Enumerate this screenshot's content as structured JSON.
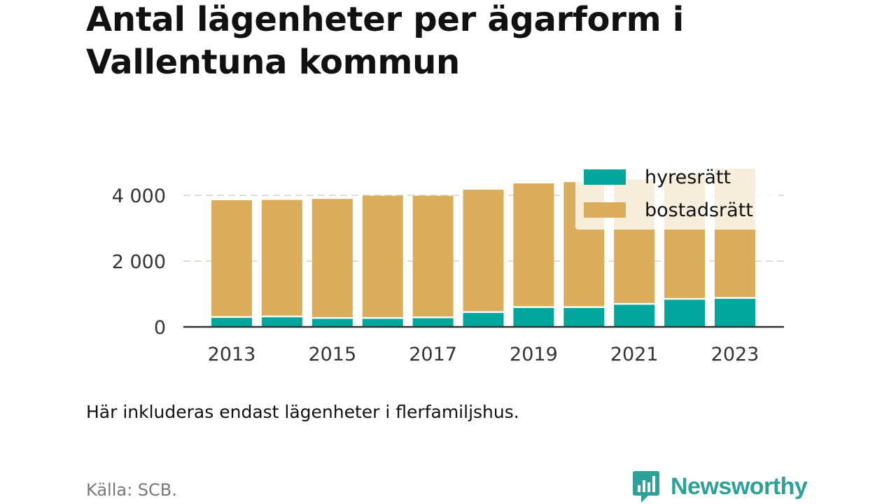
{
  "title": "Antal lägenheter per ägarform i Vallentuna kommun",
  "note": "Här inkluderas endast lägenheter i flerfamiljshus.",
  "source": "Källa: SCB.",
  "brand": "Newsworthy",
  "colors": {
    "hyresratt": "#00a59b",
    "bostadsratt": "#daac5b",
    "brand": "#2ba198",
    "grid": "#dddddd",
    "axis": "#333333"
  },
  "chart_data": {
    "type": "bar",
    "stacked": true,
    "categories": [
      "2013",
      "2014",
      "2015",
      "2016",
      "2017",
      "2018",
      "2019",
      "2020",
      "2021",
      "2022",
      "2023"
    ],
    "x_tick_labels": [
      "2013",
      "2015",
      "2017",
      "2019",
      "2021",
      "2023"
    ],
    "y_tick_values": [
      0,
      2000,
      4000
    ],
    "y_tick_labels": [
      "0",
      "2 000",
      "4 000"
    ],
    "ylim": [
      0,
      4500
    ],
    "grid": true,
    "legend_position": "top-right",
    "series": [
      {
        "name": "hyresrätt",
        "color": "#00a59b",
        "values": [
          300,
          320,
          270,
          270,
          290,
          450,
          600,
          600,
          700,
          850,
          880
        ]
      },
      {
        "name": "bostadsrätt",
        "color": "#daac5b",
        "values": [
          3550,
          3540,
          3620,
          3720,
          3700,
          3720,
          3760,
          3800,
          3780,
          3800,
          3930
        ]
      }
    ]
  }
}
